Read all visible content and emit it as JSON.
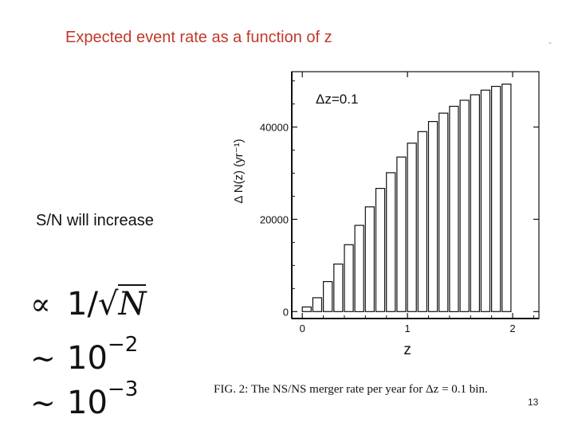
{
  "slide": {
    "title": "Expected event rate as a function of z",
    "corner_mark": "-",
    "sn_text": "S/N will increase",
    "formulas": [
      {
        "symbol": "∝",
        "text": "1/",
        "radical": "√",
        "var": "N"
      },
      {
        "symbol": "∼",
        "text": "10",
        "exponent": "−2"
      },
      {
        "symbol": "∼",
        "text": "10",
        "exponent": "−3"
      }
    ],
    "caption": "FIG. 2:   The NS/NS merger rate per year for Δz = 0.1 bin.",
    "page_number": "13"
  },
  "chart_data": {
    "type": "bar",
    "annotation": "Δz=0.1",
    "xlabel": "z",
    "ylabel": "Δ N(z) (yr⁻¹)",
    "xlim": [
      -0.1,
      2.25
    ],
    "ylim": [
      -1500,
      52000
    ],
    "xticks": [
      0,
      1,
      2
    ],
    "xtick_labels": [
      "0",
      "1",
      "2"
    ],
    "yticks": [
      0,
      20000,
      40000
    ],
    "ytick_labels": [
      "0",
      "20000",
      "40000"
    ],
    "bin_width": 0.1,
    "bin_starts": [
      0.0,
      0.1,
      0.2,
      0.3,
      0.4,
      0.5,
      0.6,
      0.7,
      0.8,
      0.9,
      1.0,
      1.1,
      1.2,
      1.3,
      1.4,
      1.5,
      1.6,
      1.7,
      1.8,
      1.9
    ],
    "values": [
      1000,
      3000,
      6500,
      10300,
      14500,
      18700,
      22700,
      26700,
      30100,
      33500,
      36500,
      39000,
      41200,
      43000,
      44500,
      45800,
      47000,
      48000,
      48800,
      49300
    ],
    "bar_fill": "#ffffff",
    "bar_stroke": "#111111",
    "grid": false
  }
}
